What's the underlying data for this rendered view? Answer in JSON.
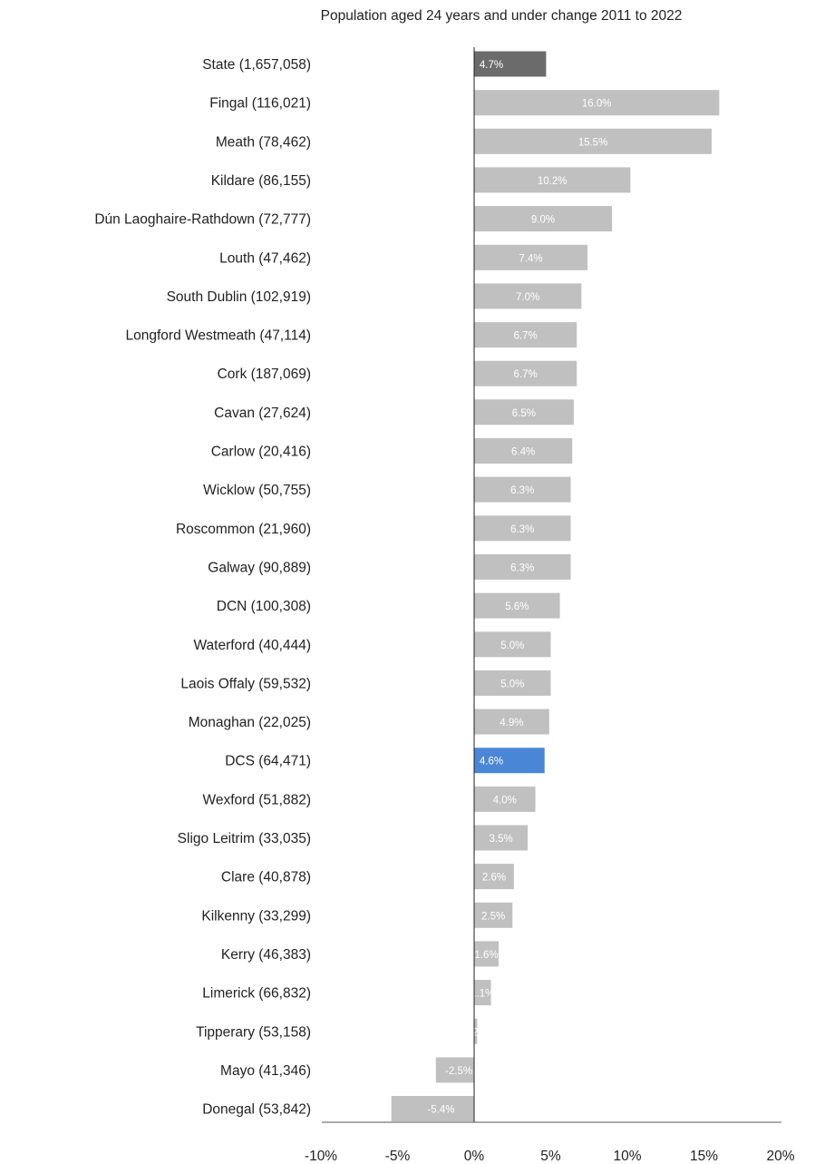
{
  "chart_data": {
    "type": "bar",
    "orientation": "horizontal",
    "title": "Population aged 24 years and under change 2011 to 2022",
    "xlabel": "",
    "ylabel": "",
    "xlim": [
      -10,
      20
    ],
    "x_ticks": [
      -10,
      -5,
      0,
      5,
      10,
      15,
      20
    ],
    "x_tick_labels": [
      "-10%",
      "-5%",
      "0%",
      "5%",
      "10%",
      "15%",
      "20%"
    ],
    "grid": false,
    "legend": "none",
    "colors": {
      "default": "#c0c0c0",
      "state": "#6b6b6b",
      "highlight": "#4a86d6"
    },
    "categories": [
      "State (1,657,058)",
      "Fingal (116,021)",
      "Meath (78,462)",
      "Kildare (86,155)",
      "Dún Laoghaire-Rathdown (72,777)",
      "Louth (47,462)",
      "South Dublin (102,919)",
      "Longford Westmeath (47,114)",
      "Cork (187,069)",
      "Cavan (27,624)",
      "Carlow (20,416)",
      "Wicklow (50,755)",
      "Roscommon (21,960)",
      "Galway (90,889)",
      "DCN (100,308)",
      "Waterford (40,444)",
      "Laois Offaly (59,532)",
      "Monaghan (22,025)",
      "DCS (64,471)",
      "Wexford (51,882)",
      "Sligo Leitrim (33,035)",
      "Clare (40,878)",
      "Kilkenny (33,299)",
      "Kerry (46,383)",
      "Limerick (66,832)",
      "Tipperary (53,158)",
      "Mayo (41,346)",
      "Donegal (53,842)"
    ],
    "values": [
      4.7,
      16.0,
      15.5,
      10.2,
      9.0,
      7.4,
      7.0,
      6.7,
      6.7,
      6.5,
      6.4,
      6.3,
      6.3,
      6.3,
      5.6,
      5.0,
      5.0,
      4.9,
      4.6,
      4.0,
      3.5,
      2.6,
      2.5,
      1.6,
      1.1,
      0.2,
      -2.5,
      -5.4
    ],
    "data_labels": [
      "4.7%",
      "16.0%",
      "15.5%",
      "10.2%",
      "9.0%",
      "7.4%",
      "7.0%",
      "6.7%",
      "6.7%",
      "6.5%",
      "6.4%",
      "6.3%",
      "6.3%",
      "6.3%",
      "5.6%",
      "5.0%",
      "5.0%",
      "4.9%",
      "4.6%",
      "4.0%",
      "3.5%",
      "2.6%",
      "2.5%",
      "1.6%",
      "1.1%",
      "0.2%",
      "-2.5%",
      "-5.4%"
    ],
    "bar_color_keys": [
      "state",
      "default",
      "default",
      "default",
      "default",
      "default",
      "default",
      "default",
      "default",
      "default",
      "default",
      "default",
      "default",
      "default",
      "default",
      "default",
      "default",
      "default",
      "highlight",
      "default",
      "default",
      "default",
      "default",
      "default",
      "default",
      "default",
      "default",
      "default"
    ]
  }
}
